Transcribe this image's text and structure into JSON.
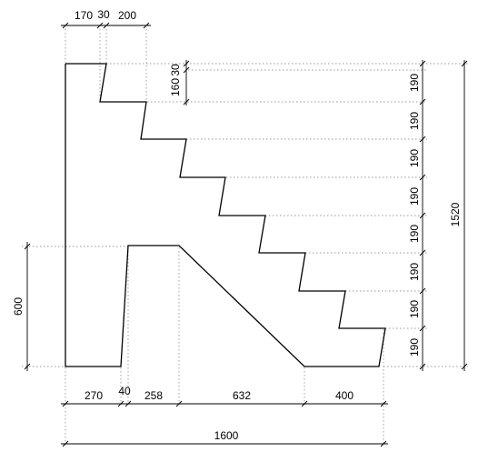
{
  "drawing": {
    "dimensions": {
      "top": [
        "170",
        "30",
        "200"
      ],
      "bottom": [
        "270",
        "40",
        "258",
        "632",
        "400"
      ],
      "overall_width": "1600",
      "left_height": "600",
      "right_risers": [
        "190",
        "190",
        "190",
        "190",
        "190",
        "190",
        "190",
        "190"
      ],
      "overall_height": "1520",
      "top_step_inner_a": "30",
      "top_step_inner_b": "160"
    }
  }
}
